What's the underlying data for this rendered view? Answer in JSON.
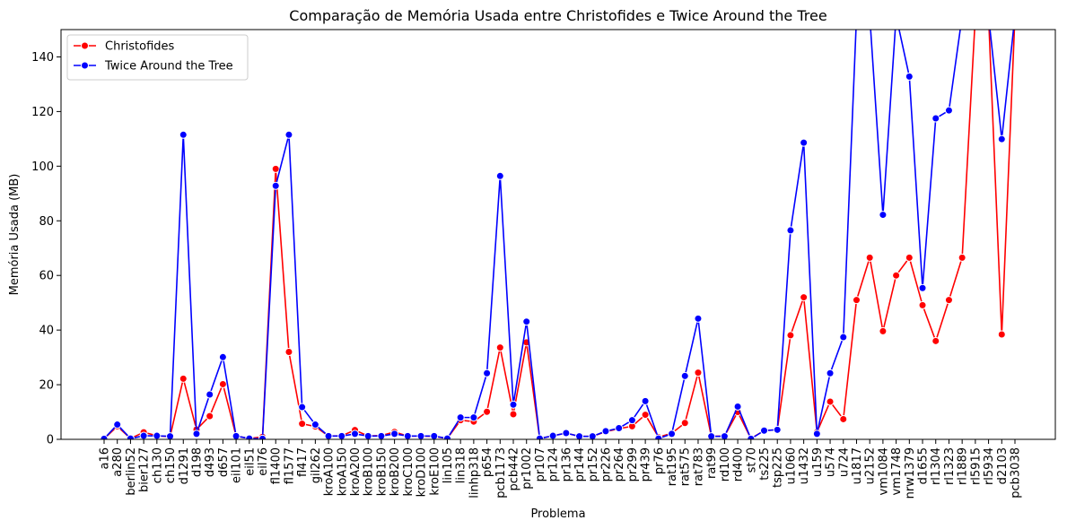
{
  "chart_data": {
    "type": "line",
    "title": "Comparação de Memória Usada entre Christofides e Twice Around the Tree",
    "xlabel": "Problema",
    "ylabel": "Memória Usada (MB)",
    "ylim": [
      0,
      150
    ],
    "yticks": [
      0,
      20,
      40,
      60,
      80,
      100,
      120,
      140
    ],
    "grid": false,
    "legend_position": "upper-left",
    "categories": [
      "a16",
      "a280",
      "berlin52",
      "bier127",
      "ch130",
      "ch150",
      "d1291",
      "d198",
      "d493",
      "d657",
      "eil101",
      "eil51",
      "eil76",
      "fl1400",
      "fl1577",
      "fl417",
      "gil262",
      "kroA100",
      "kroA150",
      "kroA200",
      "kroB100",
      "kroB150",
      "kroB200",
      "kroC100",
      "kroD100",
      "kroE100",
      "lin105",
      "lin318",
      "linhp318",
      "p654",
      "pcb1173",
      "pcb442",
      "pr1002",
      "pr107",
      "pr124",
      "pr136",
      "pr144",
      "pr152",
      "pr226",
      "pr264",
      "pr299",
      "pr439",
      "pr76",
      "rat195",
      "rat575",
      "rat783",
      "rat99",
      "rd100",
      "rd400",
      "st70",
      "ts225",
      "tsp225",
      "u1060",
      "u1432",
      "u159",
      "u574",
      "u724",
      "u1817",
      "u2152",
      "vm1084",
      "vm1748",
      "nrw1379",
      "d1655",
      "rl1304",
      "rl1323",
      "rl1889",
      "rl5915",
      "rl5934",
      "d2103",
      "pcb3038"
    ],
    "series": [
      {
        "name": "Christofides",
        "color": "#ff0000",
        "values": [
          0.2,
          4.8,
          0.3,
          2.6,
          1.3,
          1.0,
          22.2,
          3.6,
          8.5,
          20.2,
          1.2,
          0.3,
          0.9,
          99.0,
          32.0,
          5.7,
          4.7,
          1.2,
          1.3,
          3.4,
          1.2,
          1.4,
          2.7,
          1.2,
          1.2,
          1.1,
          0.3,
          7.0,
          6.5,
          10.1,
          33.6,
          9.2,
          35.5,
          0.3,
          1.3,
          2.3,
          1.1,
          1.1,
          2.8,
          3.9,
          4.8,
          9.0,
          0.8,
          2.2,
          6.0,
          24.4,
          1.1,
          1.2,
          10.0,
          0.3,
          3.2,
          3.5,
          38.1,
          52.0,
          2.6,
          13.8,
          7.4,
          51.0,
          66.5,
          39.6,
          60.0,
          66.5,
          49.1,
          36.0,
          51.0,
          66.5,
          155,
          155,
          38.4,
          155
        ]
      },
      {
        "name": "Twice Around the Tree",
        "color": "#0000ff",
        "values": [
          0.2,
          5.4,
          0.3,
          1.3,
          1.3,
          1.1,
          111.5,
          2.0,
          16.4,
          30.1,
          1.2,
          0.3,
          0.2,
          92.8,
          111.5,
          11.8,
          5.4,
          1.2,
          1.2,
          2.0,
          1.2,
          1.2,
          2.0,
          1.2,
          1.2,
          1.2,
          0.3,
          8.0,
          8.0,
          24.2,
          96.4,
          12.7,
          43.1,
          0.3,
          1.3,
          2.3,
          1.1,
          1.1,
          3.0,
          4.1,
          7.0,
          14.0,
          0.3,
          2.0,
          23.2,
          44.2,
          1.1,
          1.1,
          12.0,
          0.2,
          3.2,
          3.5,
          76.5,
          108.6,
          2.0,
          24.2,
          37.4,
          155,
          155,
          82.2,
          155,
          132.8,
          55.4,
          117.5,
          120.4,
          155,
          155,
          155,
          109.9,
          155
        ]
      }
    ]
  }
}
